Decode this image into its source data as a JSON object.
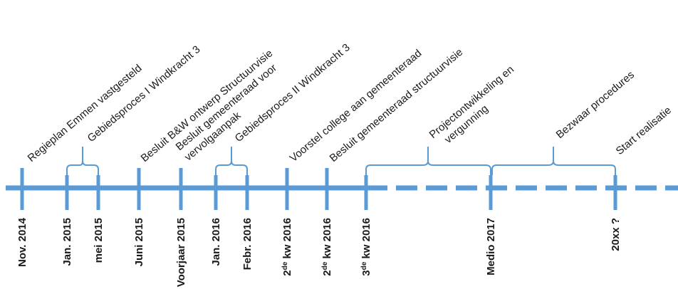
{
  "colors": {
    "line": "#5b9bd5",
    "text": "#1a1a1a"
  },
  "events_above": [
    {
      "id": "regieplan",
      "text": "Regieplan Emmen vastgesteld"
    },
    {
      "id": "gebiedsproces1",
      "lines": [
        "Gebiedsproces I Windkracht 3"
      ]
    },
    {
      "id": "besluit-bw",
      "lines": [
        "Besluit B&W ontwerp Structuurvisie"
      ]
    },
    {
      "id": "besluit-gr",
      "lines": [
        "Besluit gemeenteraad voor",
        "vervolgaanpak"
      ]
    },
    {
      "id": "gebiedsproces2",
      "lines": [
        "Gebiedsproces II Windkracht 3"
      ]
    },
    {
      "id": "voorstel",
      "lines": [
        "Voorstel college aan gemeenteraad"
      ]
    },
    {
      "id": "besluit-sv",
      "lines": [
        "Besluit gemeenteraad structuurvisie"
      ]
    },
    {
      "id": "projectontw",
      "lines": [
        "Projectontwikkeling en",
        "vergunning"
      ]
    },
    {
      "id": "bezwaar",
      "lines": [
        "Bezwaar procedures"
      ]
    },
    {
      "id": "start",
      "lines": [
        "Start realisatie"
      ]
    }
  ],
  "dates_below": [
    {
      "label": "Nov. 2014"
    },
    {
      "label": "Jan. 2015"
    },
    {
      "label": "mei 2015"
    },
    {
      "label": "Juni 2015"
    },
    {
      "label": "Voorjaar 2015"
    },
    {
      "label": "Jan. 2016"
    },
    {
      "label": "Febr. 2016"
    },
    {
      "num": "2",
      "sup": "de",
      "rest": " kw 2016"
    },
    {
      "num": "2",
      "sup": "de",
      "rest": " kw 2016"
    },
    {
      "num": "3",
      "sup": "de",
      "rest": " kw 2016"
    },
    {
      "label": "Medio 2017"
    },
    {
      "label": "20xx ?"
    }
  ]
}
